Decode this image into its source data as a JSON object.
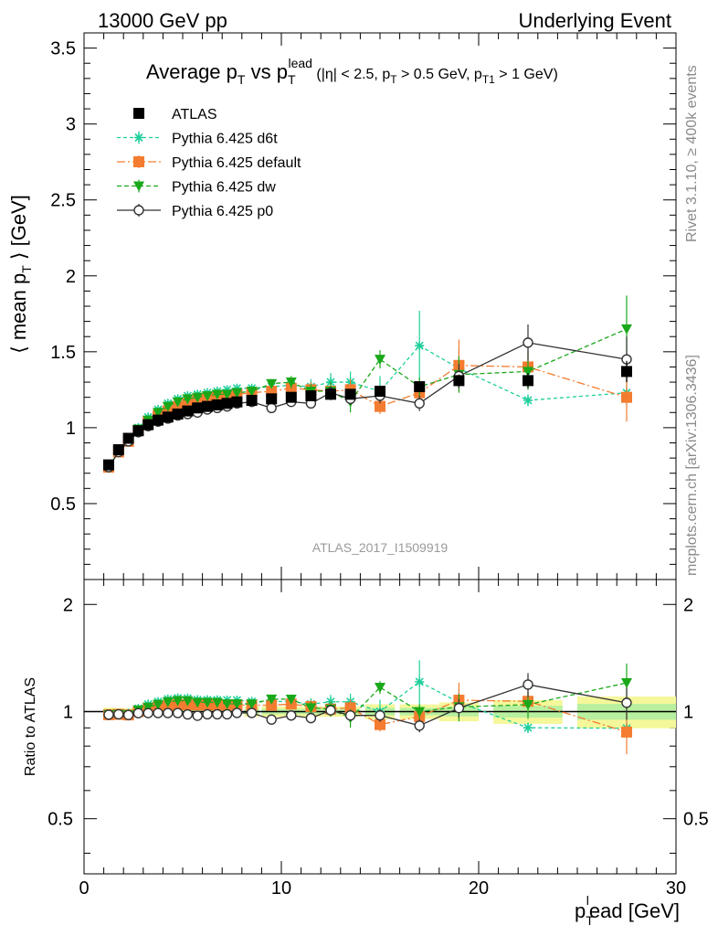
{
  "header": {
    "left": "13000 GeV pp",
    "right": "Underlying Event"
  },
  "plot_title": {
    "main": "Average p",
    "main_sub": "T",
    "vs": " vs p",
    "vs_sub": "T",
    "vs_sup": "lead",
    "cuts_1": " (|η| < 2.5, p",
    "cuts_1_sub": "T",
    "cuts_2": " > 0.5 GeV, p",
    "cuts_2_sub": "T1",
    "cuts_3": " > 1 GeV)"
  },
  "side_labels": {
    "rivet": "Rivet 3.1.10, ≥ 400k events",
    "mcplots": "mcplots.cern.ch [arXiv:1306.3436]"
  },
  "watermark": "ATLAS_2017_I1509919",
  "axes": {
    "ylabel_main_pre": "⟨ mean p",
    "ylabel_main_sub": "T",
    "ylabel_main_post": " ⟩ [GeV]",
    "ylabel_ratio": "Ratio to ATLAS",
    "xlabel_pre": "p",
    "xlabel_sub": "T",
    "xlabel_sup": "l",
    "xlabel_post": "ead [GeV]",
    "xlim": [
      0,
      30
    ],
    "ylim_main": [
      0,
      3.6
    ],
    "ylim_ratio": [
      0.35,
      2.35
    ],
    "xticks": [
      "0",
      "10",
      "20",
      "30"
    ],
    "yticks_main": [
      "0.5",
      "1",
      "1.5",
      "2",
      "2.5",
      "3",
      "3.5"
    ],
    "yticks_ratio": [
      "0.5",
      "1",
      "2"
    ]
  },
  "legend": [
    {
      "label": "ATLAS",
      "color": "#000000",
      "marker": "square-filled",
      "dash": "none"
    },
    {
      "label": "Pythia 6.425 d6t",
      "color": "#1fcf9b",
      "marker": "star",
      "dash": "4,3"
    },
    {
      "label": "Pythia 6.425 default",
      "color": "#f47c30",
      "marker": "square-filled",
      "dash": "9,3,2,3"
    },
    {
      "label": "Pythia 6.425 dw",
      "color": "#1aa81a",
      "marker": "triangle-down",
      "dash": "5,3"
    },
    {
      "label": "Pythia 6.425 p0",
      "color": "#333333",
      "marker": "circle-open",
      "dash": "none"
    }
  ],
  "chart_data": {
    "type": "scatter",
    "x": [
      1.25,
      1.75,
      2.25,
      2.75,
      3.25,
      3.75,
      4.25,
      4.75,
      5.25,
      5.75,
      6.25,
      6.75,
      7.25,
      7.75,
      8.5,
      9.5,
      10.5,
      11.5,
      12.5,
      13.5,
      15.0,
      17.0,
      19.0,
      22.5,
      27.5
    ],
    "series": [
      {
        "name": "ATLAS",
        "values": [
          0.755,
          0.855,
          0.93,
          0.98,
          1.02,
          1.05,
          1.07,
          1.09,
          1.11,
          1.13,
          1.14,
          1.15,
          1.16,
          1.17,
          1.18,
          1.19,
          1.2,
          1.21,
          1.22,
          1.22,
          1.24,
          1.27,
          1.31,
          1.31,
          1.37
        ],
        "errors": [
          0.01,
          0.01,
          0.01,
          0.01,
          0.01,
          0.01,
          0.01,
          0.01,
          0.01,
          0.01,
          0.01,
          0.01,
          0.01,
          0.01,
          0.02,
          0.02,
          0.02,
          0.02,
          0.02,
          0.02,
          0.03,
          0.03,
          0.04,
          0.05,
          0.07
        ]
      },
      {
        "name": "Pythia 6.425 d6t",
        "values": [
          0.74,
          0.84,
          0.92,
          1.0,
          1.07,
          1.12,
          1.16,
          1.19,
          1.21,
          1.22,
          1.23,
          1.24,
          1.25,
          1.26,
          1.26,
          1.27,
          1.28,
          1.27,
          1.3,
          1.3,
          1.24,
          1.54,
          1.39,
          1.18,
          1.23
        ],
        "errors": [
          0.01,
          0.01,
          0.01,
          0.01,
          0.01,
          0.01,
          0.01,
          0.01,
          0.01,
          0.01,
          0.01,
          0.01,
          0.01,
          0.01,
          0.02,
          0.03,
          0.04,
          0.05,
          0.06,
          0.07,
          0.1,
          0.23,
          0.13,
          0.04,
          0.08
        ]
      },
      {
        "name": "Pythia 6.425 default",
        "values": [
          0.74,
          0.84,
          0.91,
          0.98,
          1.04,
          1.08,
          1.11,
          1.14,
          1.16,
          1.18,
          1.19,
          1.2,
          1.21,
          1.22,
          1.23,
          1.24,
          1.26,
          1.25,
          1.24,
          1.25,
          1.14,
          1.23,
          1.41,
          1.4,
          1.2
        ],
        "errors": [
          0.01,
          0.01,
          0.01,
          0.01,
          0.01,
          0.01,
          0.01,
          0.01,
          0.01,
          0.01,
          0.01,
          0.01,
          0.01,
          0.01,
          0.02,
          0.03,
          0.04,
          0.05,
          0.06,
          0.07,
          0.05,
          0.07,
          0.17,
          0.12,
          0.16
        ]
      },
      {
        "name": "Pythia 6.425 dw",
        "values": [
          0.74,
          0.84,
          0.91,
          0.99,
          1.05,
          1.1,
          1.14,
          1.17,
          1.19,
          1.2,
          1.21,
          1.22,
          1.22,
          1.23,
          1.24,
          1.29,
          1.3,
          1.24,
          1.24,
          1.17,
          1.45,
          1.27,
          1.35,
          1.37,
          1.65
        ],
        "errors": [
          0.01,
          0.01,
          0.01,
          0.01,
          0.01,
          0.01,
          0.01,
          0.01,
          0.01,
          0.01,
          0.01,
          0.01,
          0.01,
          0.01,
          0.02,
          0.03,
          0.04,
          0.05,
          0.06,
          0.07,
          0.06,
          0.06,
          0.12,
          0.12,
          0.22
        ]
      },
      {
        "name": "Pythia 6.425 p0",
        "values": [
          0.74,
          0.84,
          0.91,
          0.97,
          1.01,
          1.04,
          1.06,
          1.08,
          1.09,
          1.1,
          1.12,
          1.13,
          1.14,
          1.16,
          1.17,
          1.13,
          1.17,
          1.16,
          1.23,
          1.19,
          1.21,
          1.16,
          1.34,
          1.56,
          1.45
        ],
        "errors": [
          0.01,
          0.01,
          0.01,
          0.01,
          0.01,
          0.01,
          0.01,
          0.01,
          0.01,
          0.01,
          0.01,
          0.01,
          0.01,
          0.01,
          0.02,
          0.03,
          0.03,
          0.03,
          0.04,
          0.04,
          0.05,
          0.05,
          0.08,
          0.12,
          0.15
        ]
      }
    ]
  }
}
